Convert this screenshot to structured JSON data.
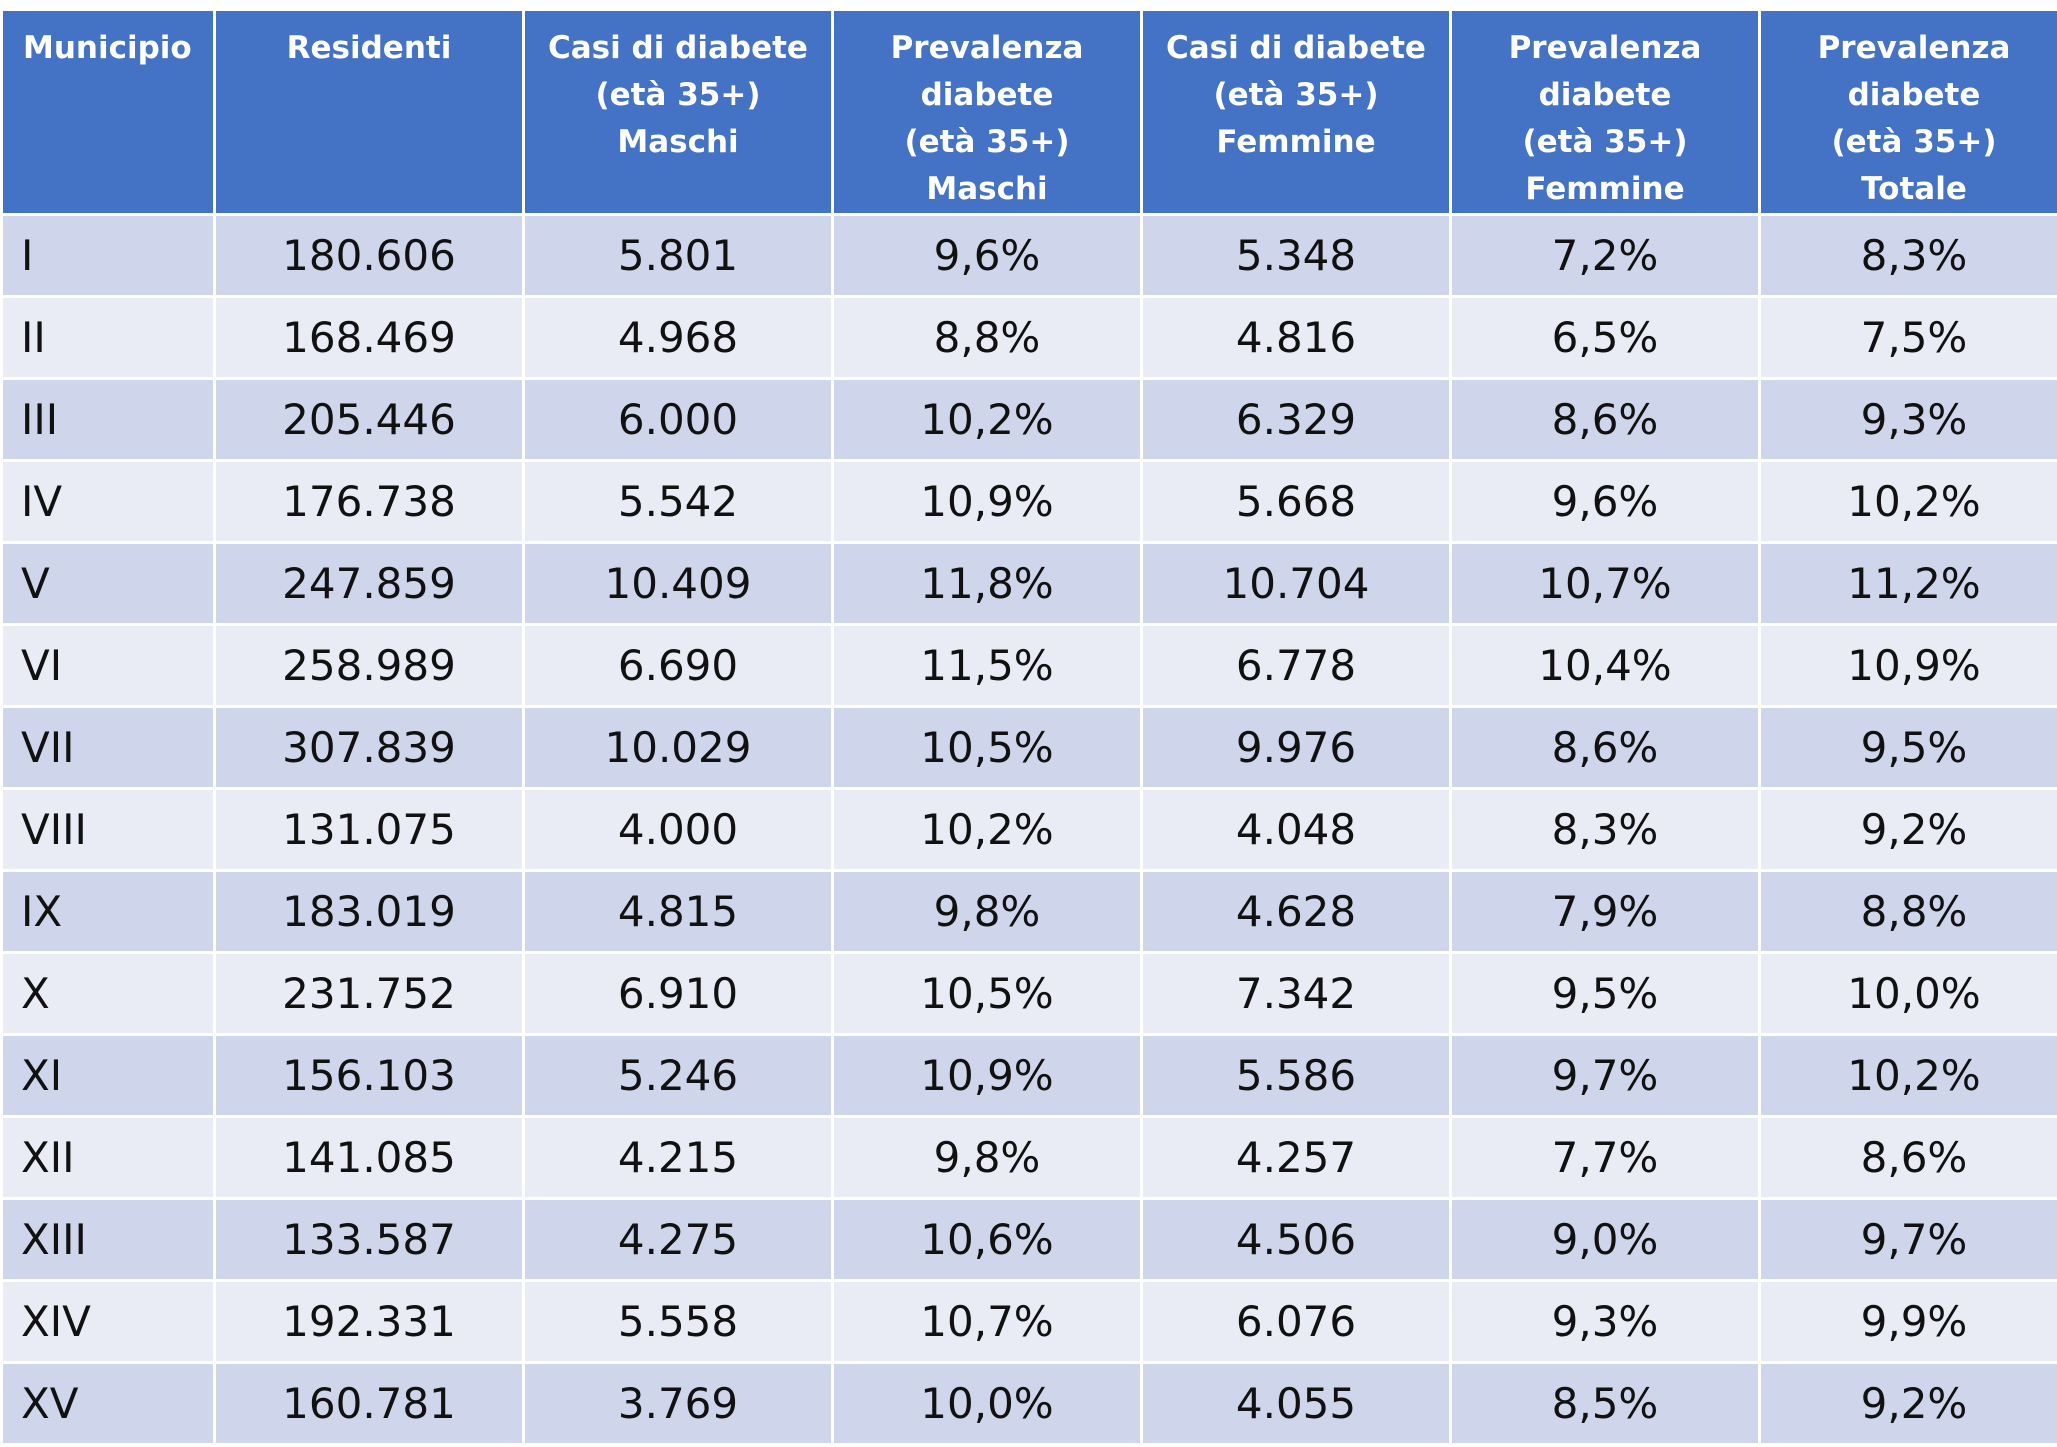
{
  "table": {
    "headers": [
      [
        "Municipio"
      ],
      [
        "Residenti"
      ],
      [
        "Casi di diabete",
        "(età 35+)",
        "Maschi"
      ],
      [
        "Prevalenza",
        "diabete",
        "(età 35+)",
        "Maschi"
      ],
      [
        "Casi di diabete",
        "(età 35+)",
        "Femmine"
      ],
      [
        "Prevalenza",
        "diabete",
        "(età 35+)",
        "Femmine"
      ],
      [
        "Prevalenza",
        "diabete",
        "(età 35+)",
        "Totale"
      ]
    ],
    "rows": [
      [
        "I",
        "180.606",
        "5.801",
        "9,6%",
        "5.348",
        "7,2%",
        "8,3%"
      ],
      [
        "II",
        "168.469",
        "4.968",
        "8,8%",
        "4.816",
        "6,5%",
        "7,5%"
      ],
      [
        "III",
        "205.446",
        "6.000",
        "10,2%",
        "6.329",
        "8,6%",
        "9,3%"
      ],
      [
        "IV",
        "176.738",
        "5.542",
        "10,9%",
        "5.668",
        "9,6%",
        "10,2%"
      ],
      [
        "V",
        "247.859",
        "10.409",
        "11,8%",
        "10.704",
        "10,7%",
        "11,2%"
      ],
      [
        "VI",
        "258.989",
        "6.690",
        "11,5%",
        "6.778",
        "10,4%",
        "10,9%"
      ],
      [
        "VII",
        "307.839",
        "10.029",
        "10,5%",
        "9.976",
        "8,6%",
        "9,5%"
      ],
      [
        "VIII",
        "131.075",
        "4.000",
        "10,2%",
        "4.048",
        "8,3%",
        "9,2%"
      ],
      [
        "IX",
        "183.019",
        "4.815",
        "9,8%",
        "4.628",
        "7,9%",
        "8,8%"
      ],
      [
        "X",
        "231.752",
        "6.910",
        "10,5%",
        "7.342",
        "9,5%",
        "10,0%"
      ],
      [
        "XI",
        "156.103",
        "5.246",
        "10,9%",
        "5.586",
        "9,7%",
        "10,2%"
      ],
      [
        "XII",
        "141.085",
        "4.215",
        "9,8%",
        "4.257",
        "7,7%",
        "8,6%"
      ],
      [
        "XIII",
        "133.587",
        "4.275",
        "10,6%",
        "4.506",
        "9,0%",
        "9,7%"
      ],
      [
        "XIV",
        "192.331",
        "5.558",
        "10,7%",
        "6.076",
        "9,3%",
        "9,9%"
      ],
      [
        "XV",
        "160.781",
        "3.769",
        "10,0%",
        "4.055",
        "8,5%",
        "9,2%"
      ]
    ]
  },
  "colors": {
    "header_bg": "#4472c4",
    "row_odd_bg": "#cfd5ea",
    "row_even_bg": "#e9ebf5"
  }
}
